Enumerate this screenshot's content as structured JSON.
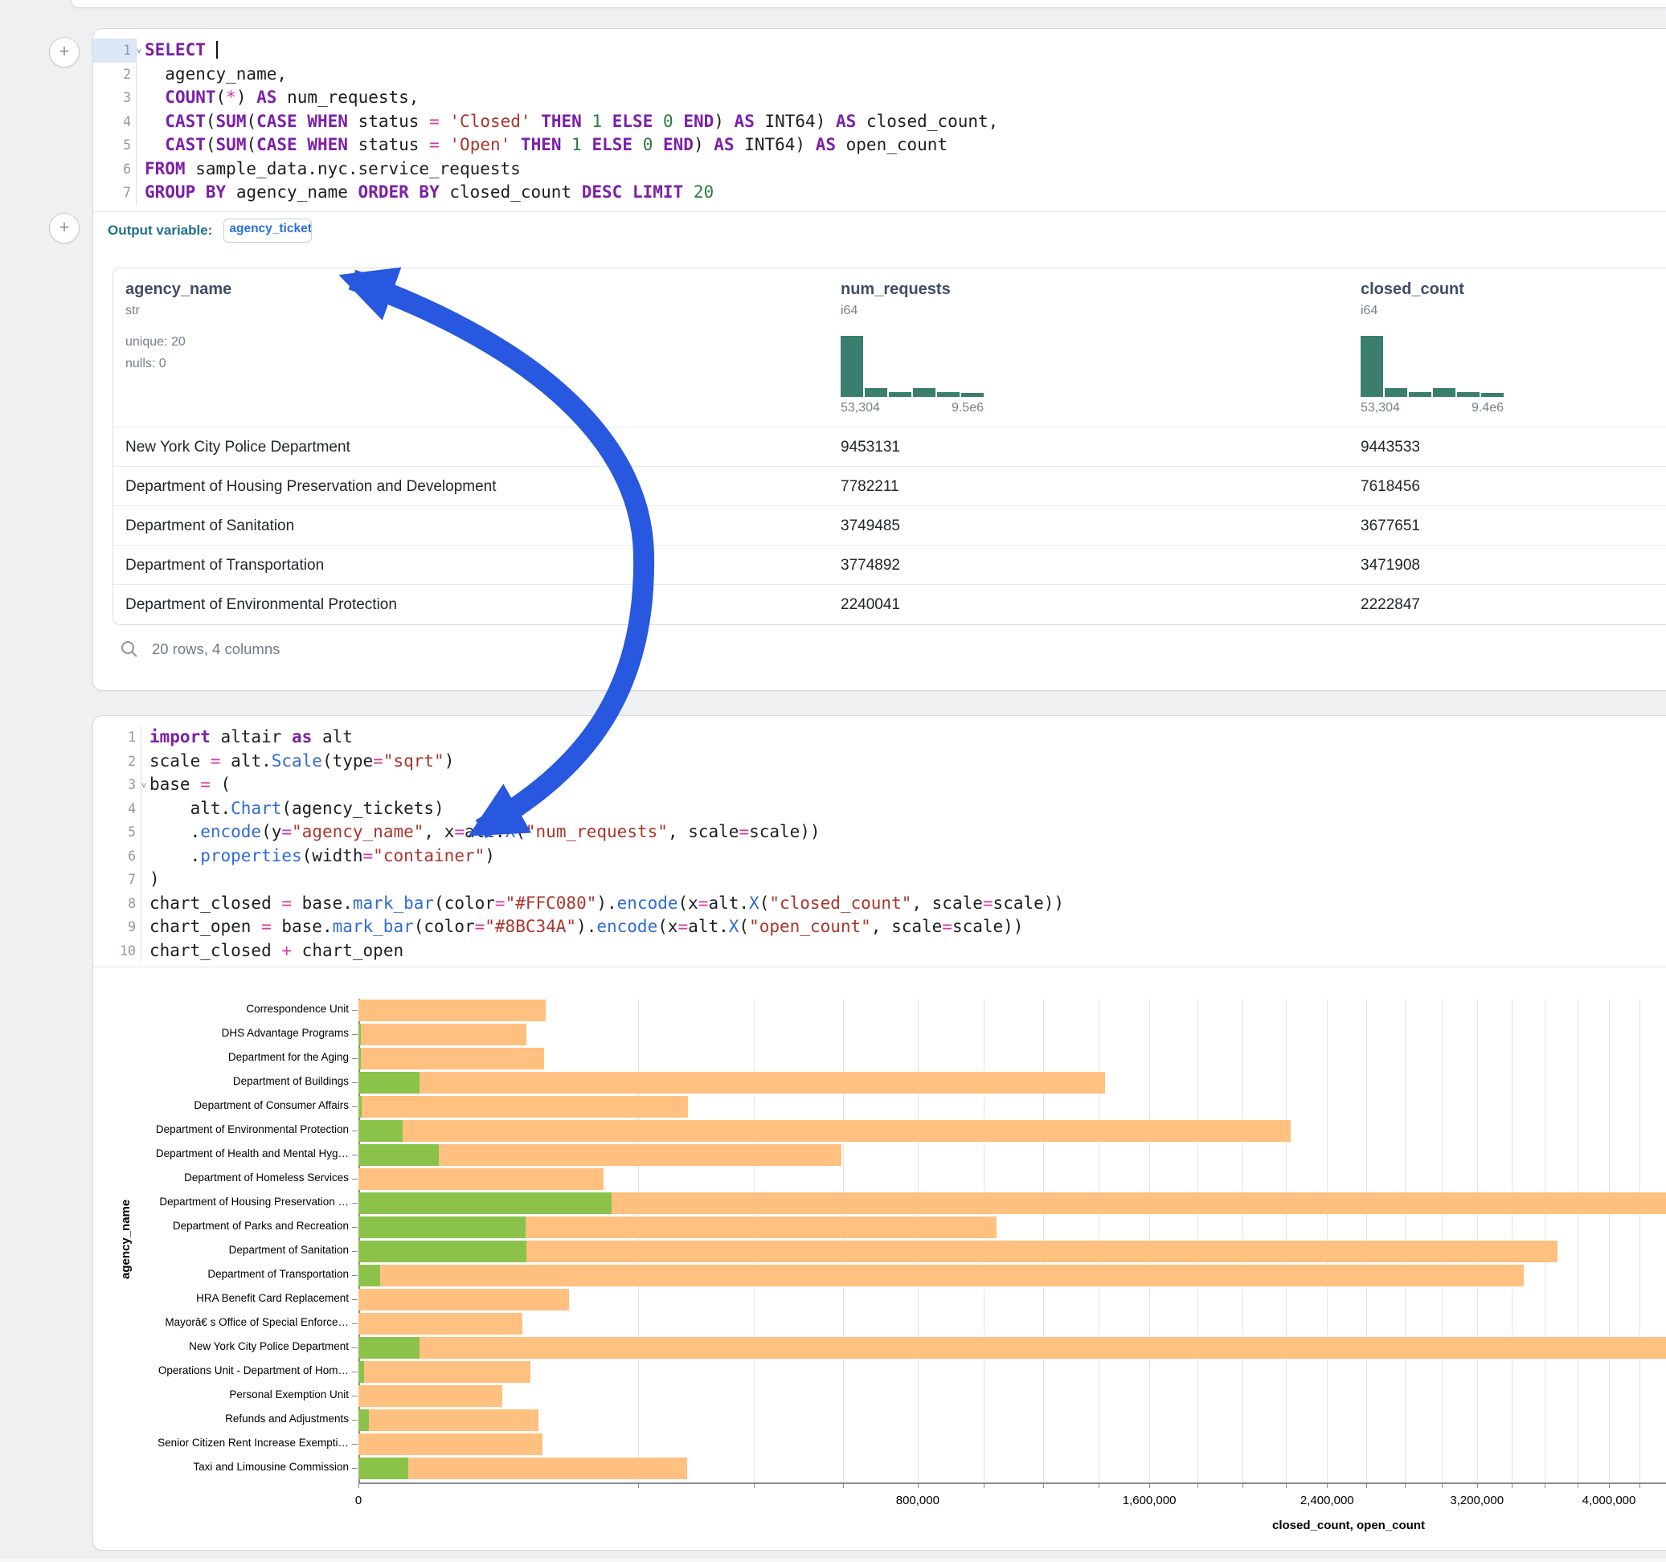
{
  "colors": {
    "closed_bar": "#FFC080",
    "open_bar": "#8BC34A",
    "histogram": "#3a7e6e",
    "arrow": "#2857e0",
    "keyword": "#7c1fa8",
    "string": "#ab352b",
    "number": "#2b7a3f",
    "operator": "#d6369f",
    "function": "#2f6bd8"
  },
  "sql_cell": {
    "lines": [
      {
        "num": "1",
        "chev": true,
        "hl": true,
        "cursor": true,
        "tokens": [
          [
            "k",
            "SELECT"
          ],
          [
            "p",
            " "
          ]
        ]
      },
      {
        "num": "2",
        "tokens": [
          [
            "p",
            "  agency_name,"
          ]
        ]
      },
      {
        "num": "3",
        "tokens": [
          [
            "p",
            "  "
          ],
          [
            "k",
            "COUNT"
          ],
          [
            "p",
            "("
          ],
          [
            "o",
            "*"
          ],
          [
            "p",
            ") "
          ],
          [
            "k",
            "AS"
          ],
          [
            "p",
            " num_requests,"
          ]
        ]
      },
      {
        "num": "4",
        "tokens": [
          [
            "p",
            "  "
          ],
          [
            "k",
            "CAST"
          ],
          [
            "p",
            "("
          ],
          [
            "k",
            "SUM"
          ],
          [
            "p",
            "("
          ],
          [
            "k",
            "CASE"
          ],
          [
            "p",
            " "
          ],
          [
            "k",
            "WHEN"
          ],
          [
            "p",
            " status "
          ],
          [
            "o",
            "="
          ],
          [
            "p",
            " "
          ],
          [
            "s",
            "'Closed'"
          ],
          [
            "p",
            " "
          ],
          [
            "k",
            "THEN"
          ],
          [
            "p",
            " "
          ],
          [
            "n",
            "1"
          ],
          [
            "p",
            " "
          ],
          [
            "k",
            "ELSE"
          ],
          [
            "p",
            " "
          ],
          [
            "n",
            "0"
          ],
          [
            "p",
            " "
          ],
          [
            "k",
            "END"
          ],
          [
            "p",
            ") "
          ],
          [
            "k",
            "AS"
          ],
          [
            "p",
            " INT64) "
          ],
          [
            "k",
            "AS"
          ],
          [
            "p",
            " closed_count,"
          ]
        ]
      },
      {
        "num": "5",
        "tokens": [
          [
            "p",
            "  "
          ],
          [
            "k",
            "CAST"
          ],
          [
            "p",
            "("
          ],
          [
            "k",
            "SUM"
          ],
          [
            "p",
            "("
          ],
          [
            "k",
            "CASE"
          ],
          [
            "p",
            " "
          ],
          [
            "k",
            "WHEN"
          ],
          [
            "p",
            " status "
          ],
          [
            "o",
            "="
          ],
          [
            "p",
            " "
          ],
          [
            "s",
            "'Open'"
          ],
          [
            "p",
            " "
          ],
          [
            "k",
            "THEN"
          ],
          [
            "p",
            " "
          ],
          [
            "n",
            "1"
          ],
          [
            "p",
            " "
          ],
          [
            "k",
            "ELSE"
          ],
          [
            "p",
            " "
          ],
          [
            "n",
            "0"
          ],
          [
            "p",
            " "
          ],
          [
            "k",
            "END"
          ],
          [
            "p",
            ") "
          ],
          [
            "k",
            "AS"
          ],
          [
            "p",
            " INT64) "
          ],
          [
            "k",
            "AS"
          ],
          [
            "p",
            " open_count"
          ]
        ]
      },
      {
        "num": "6",
        "tokens": [
          [
            "k",
            "FROM"
          ],
          [
            "p",
            " sample_data.nyc.service_requests"
          ]
        ]
      },
      {
        "num": "7",
        "tokens": [
          [
            "k",
            "GROUP"
          ],
          [
            "p",
            " "
          ],
          [
            "k",
            "BY"
          ],
          [
            "p",
            " agency_name "
          ],
          [
            "k",
            "ORDER"
          ],
          [
            "p",
            " "
          ],
          [
            "k",
            "BY"
          ],
          [
            "p",
            " closed_count "
          ],
          [
            "k",
            "DESC"
          ],
          [
            "p",
            " "
          ],
          [
            "k",
            "LIMIT"
          ],
          [
            "p",
            " "
          ],
          [
            "n",
            "20"
          ]
        ]
      }
    ]
  },
  "output_variable": {
    "label": "Output variable:",
    "value": "agency_tickets"
  },
  "table": {
    "columns": [
      {
        "name": "agency_name",
        "type": "str",
        "stats": [
          "unique: 20",
          "nulls: 0"
        ]
      },
      {
        "name": "num_requests",
        "type": "i64",
        "hist": {
          "bars": [
            1,
            0.15,
            0.08,
            0.14,
            0.075,
            0.065
          ],
          "min_label": "53,304",
          "max_label": "9.5e6"
        }
      },
      {
        "name": "closed_count",
        "type": "i64",
        "hist": {
          "bars": [
            1,
            0.15,
            0.08,
            0.14,
            0.075,
            0.065
          ],
          "min_label": "53,304",
          "max_label": "9.4e6"
        }
      }
    ],
    "rows": [
      [
        "New York City Police Department",
        "9453131",
        "9443533"
      ],
      [
        "Department of Housing Preservation and Development",
        "7782211",
        "7618456"
      ],
      [
        "Department of Sanitation",
        "3749485",
        "3677651"
      ],
      [
        "Department of Transportation",
        "3774892",
        "3471908"
      ],
      [
        "Department of Environmental Protection",
        "2240041",
        "2222847"
      ]
    ],
    "footer": "20 rows, 4 columns"
  },
  "python_cell": {
    "lines": [
      {
        "num": "1",
        "tokens": [
          [
            "k",
            "import"
          ],
          [
            "p",
            " altair "
          ],
          [
            "k",
            "as"
          ],
          [
            "p",
            " alt"
          ]
        ]
      },
      {
        "num": "2",
        "tokens": [
          [
            "p",
            "scale "
          ],
          [
            "o",
            "="
          ],
          [
            "p",
            " alt."
          ],
          [
            "f",
            "Scale"
          ],
          [
            "p",
            "(type"
          ],
          [
            "o",
            "="
          ],
          [
            "s",
            "\"sqrt\""
          ],
          [
            "p",
            ")"
          ]
        ]
      },
      {
        "num": "3",
        "chev": true,
        "tokens": [
          [
            "p",
            "base "
          ],
          [
            "o",
            "="
          ],
          [
            "p",
            " ("
          ]
        ]
      },
      {
        "num": "4",
        "tokens": [
          [
            "p",
            "    alt."
          ],
          [
            "f",
            "Chart"
          ],
          [
            "p",
            "(agency_tickets)"
          ]
        ]
      },
      {
        "num": "5",
        "tokens": [
          [
            "p",
            "    ."
          ],
          [
            "f",
            "encode"
          ],
          [
            "p",
            "(y"
          ],
          [
            "o",
            "="
          ],
          [
            "s",
            "\"agency_name\""
          ],
          [
            "p",
            ", x"
          ],
          [
            "o",
            "="
          ],
          [
            "p",
            "alt."
          ],
          [
            "f",
            "X"
          ],
          [
            "p",
            "("
          ],
          [
            "s",
            "\"num_requests\""
          ],
          [
            "p",
            ", scale"
          ],
          [
            "o",
            "="
          ],
          [
            "p",
            "scale))"
          ]
        ]
      },
      {
        "num": "6",
        "tokens": [
          [
            "p",
            "    ."
          ],
          [
            "f",
            "properties"
          ],
          [
            "p",
            "(width"
          ],
          [
            "o",
            "="
          ],
          [
            "s",
            "\"container\""
          ],
          [
            "p",
            ")"
          ]
        ]
      },
      {
        "num": "7",
        "tokens": [
          [
            "p",
            ")"
          ]
        ]
      },
      {
        "num": "8",
        "tokens": [
          [
            "p",
            "chart_closed "
          ],
          [
            "o",
            "="
          ],
          [
            "p",
            " base."
          ],
          [
            "f",
            "mark_bar"
          ],
          [
            "p",
            "(color"
          ],
          [
            "o",
            "="
          ],
          [
            "s",
            "\"#FFC080\""
          ],
          [
            "p",
            ")."
          ],
          [
            "f",
            "encode"
          ],
          [
            "p",
            "(x"
          ],
          [
            "o",
            "="
          ],
          [
            "p",
            "alt."
          ],
          [
            "f",
            "X"
          ],
          [
            "p",
            "("
          ],
          [
            "s",
            "\"closed_count\""
          ],
          [
            "p",
            ", scale"
          ],
          [
            "o",
            "="
          ],
          [
            "p",
            "scale))"
          ]
        ]
      },
      {
        "num": "9",
        "tokens": [
          [
            "p",
            "chart_open "
          ],
          [
            "o",
            "="
          ],
          [
            "p",
            " base."
          ],
          [
            "f",
            "mark_bar"
          ],
          [
            "p",
            "(color"
          ],
          [
            "o",
            "="
          ],
          [
            "s",
            "\"#8BC34A\""
          ],
          [
            "p",
            ")."
          ],
          [
            "f",
            "encode"
          ],
          [
            "p",
            "(x"
          ],
          [
            "o",
            "="
          ],
          [
            "p",
            "alt."
          ],
          [
            "f",
            "X"
          ],
          [
            "p",
            "("
          ],
          [
            "s",
            "\"open_count\""
          ],
          [
            "p",
            ", scale"
          ],
          [
            "o",
            "="
          ],
          [
            "p",
            "scale))"
          ]
        ]
      },
      {
        "num": "10",
        "tokens": [
          [
            "p",
            "chart_closed "
          ],
          [
            "o",
            "+"
          ],
          [
            "p",
            " chart_open"
          ]
        ]
      }
    ]
  },
  "chart_data": {
    "type": "bar",
    "orientation": "horizontal",
    "x_scale": "sqrt",
    "xlabel": "closed_count, open_count",
    "ylabel": "agency_name",
    "x_tick_step": 200000,
    "x_major_ticks": [
      0,
      800000,
      1600000,
      2400000,
      3200000,
      4000000
    ],
    "x_major_labels": [
      "0",
      "800,000",
      "1,600,000",
      "2,400,000",
      "3,200,000",
      "4,000,000"
    ],
    "categories": [
      "Correspondence Unit",
      "DHS Advantage Programs",
      "Department for the Aging",
      "Department of Buildings",
      "Department of Consumer Affairs",
      "Department of Environmental Protection",
      "Department of Health and Mental Hyg…",
      "Department of Homeless Services",
      "Department of Housing Preservation …",
      "Department of Parks and Recreation",
      "Department of Sanitation",
      "Department of Transportation",
      "HRA Benefit Card Replacement",
      "Mayorâ€ s Office of Special Enforce…",
      "New York City Police Department",
      "Operations Unit - Department of Hom…",
      "Personal Exemption Unit",
      "Refunds and Adjustments",
      "Senior Citizen Rent Increase Exempti…",
      "Taxi and Limousine Commission"
    ],
    "series": [
      {
        "name": "closed_count",
        "color": "#FFC080",
        "values": [
          90000,
          72000,
          88000,
          1426000,
          278000,
          2222847,
          597000,
          154000,
          7618456,
          1042000,
          3677651,
          3471908,
          113000,
          69000,
          9443533,
          76000,
          53000,
          83000,
          87000,
          276000
        ]
      },
      {
        "name": "open_count",
        "color": "#8BC34A",
        "values": [
          0,
          15,
          15,
          9500,
          25,
          5000,
          16500,
          0,
          163755,
          71500,
          71834,
          1200,
          0,
          0,
          9598,
          80,
          0,
          280,
          0,
          6350
        ]
      }
    ]
  }
}
